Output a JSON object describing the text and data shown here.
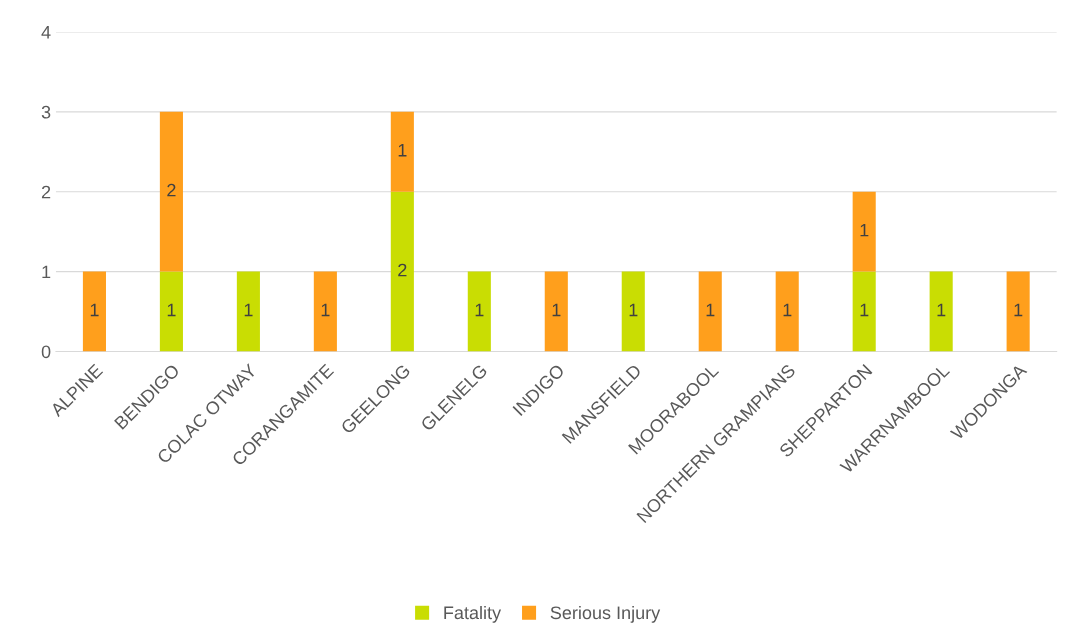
{
  "chart_data": {
    "type": "bar",
    "stacked": true,
    "categories": [
      "ALPINE",
      "BENDIGO",
      "COLAC OTWAY",
      "CORANGAMITE",
      "GEELONG",
      "GLENELG",
      "INDIGO",
      "MANSFIELD",
      "MOORABOOL",
      "NORTHERN GRAMPIANS",
      "SHEPPARTON",
      "WARRNAMBOOL",
      "WODONGA"
    ],
    "series": [
      {
        "name": "Fatality",
        "color": "#c9dd03",
        "values": [
          null,
          1,
          1,
          null,
          2,
          1,
          null,
          1,
          null,
          null,
          1,
          1,
          null
        ]
      },
      {
        "name": "Serious Injury",
        "color": "#ff9f1c",
        "values": [
          1,
          2,
          null,
          1,
          1,
          null,
          1,
          null,
          1,
          1,
          1,
          null,
          1
        ]
      }
    ],
    "ylim": [
      0,
      4
    ],
    "yticks": [
      0,
      1,
      2,
      3,
      4
    ],
    "grid": "y",
    "legend": "bottom",
    "data_labels": true
  }
}
